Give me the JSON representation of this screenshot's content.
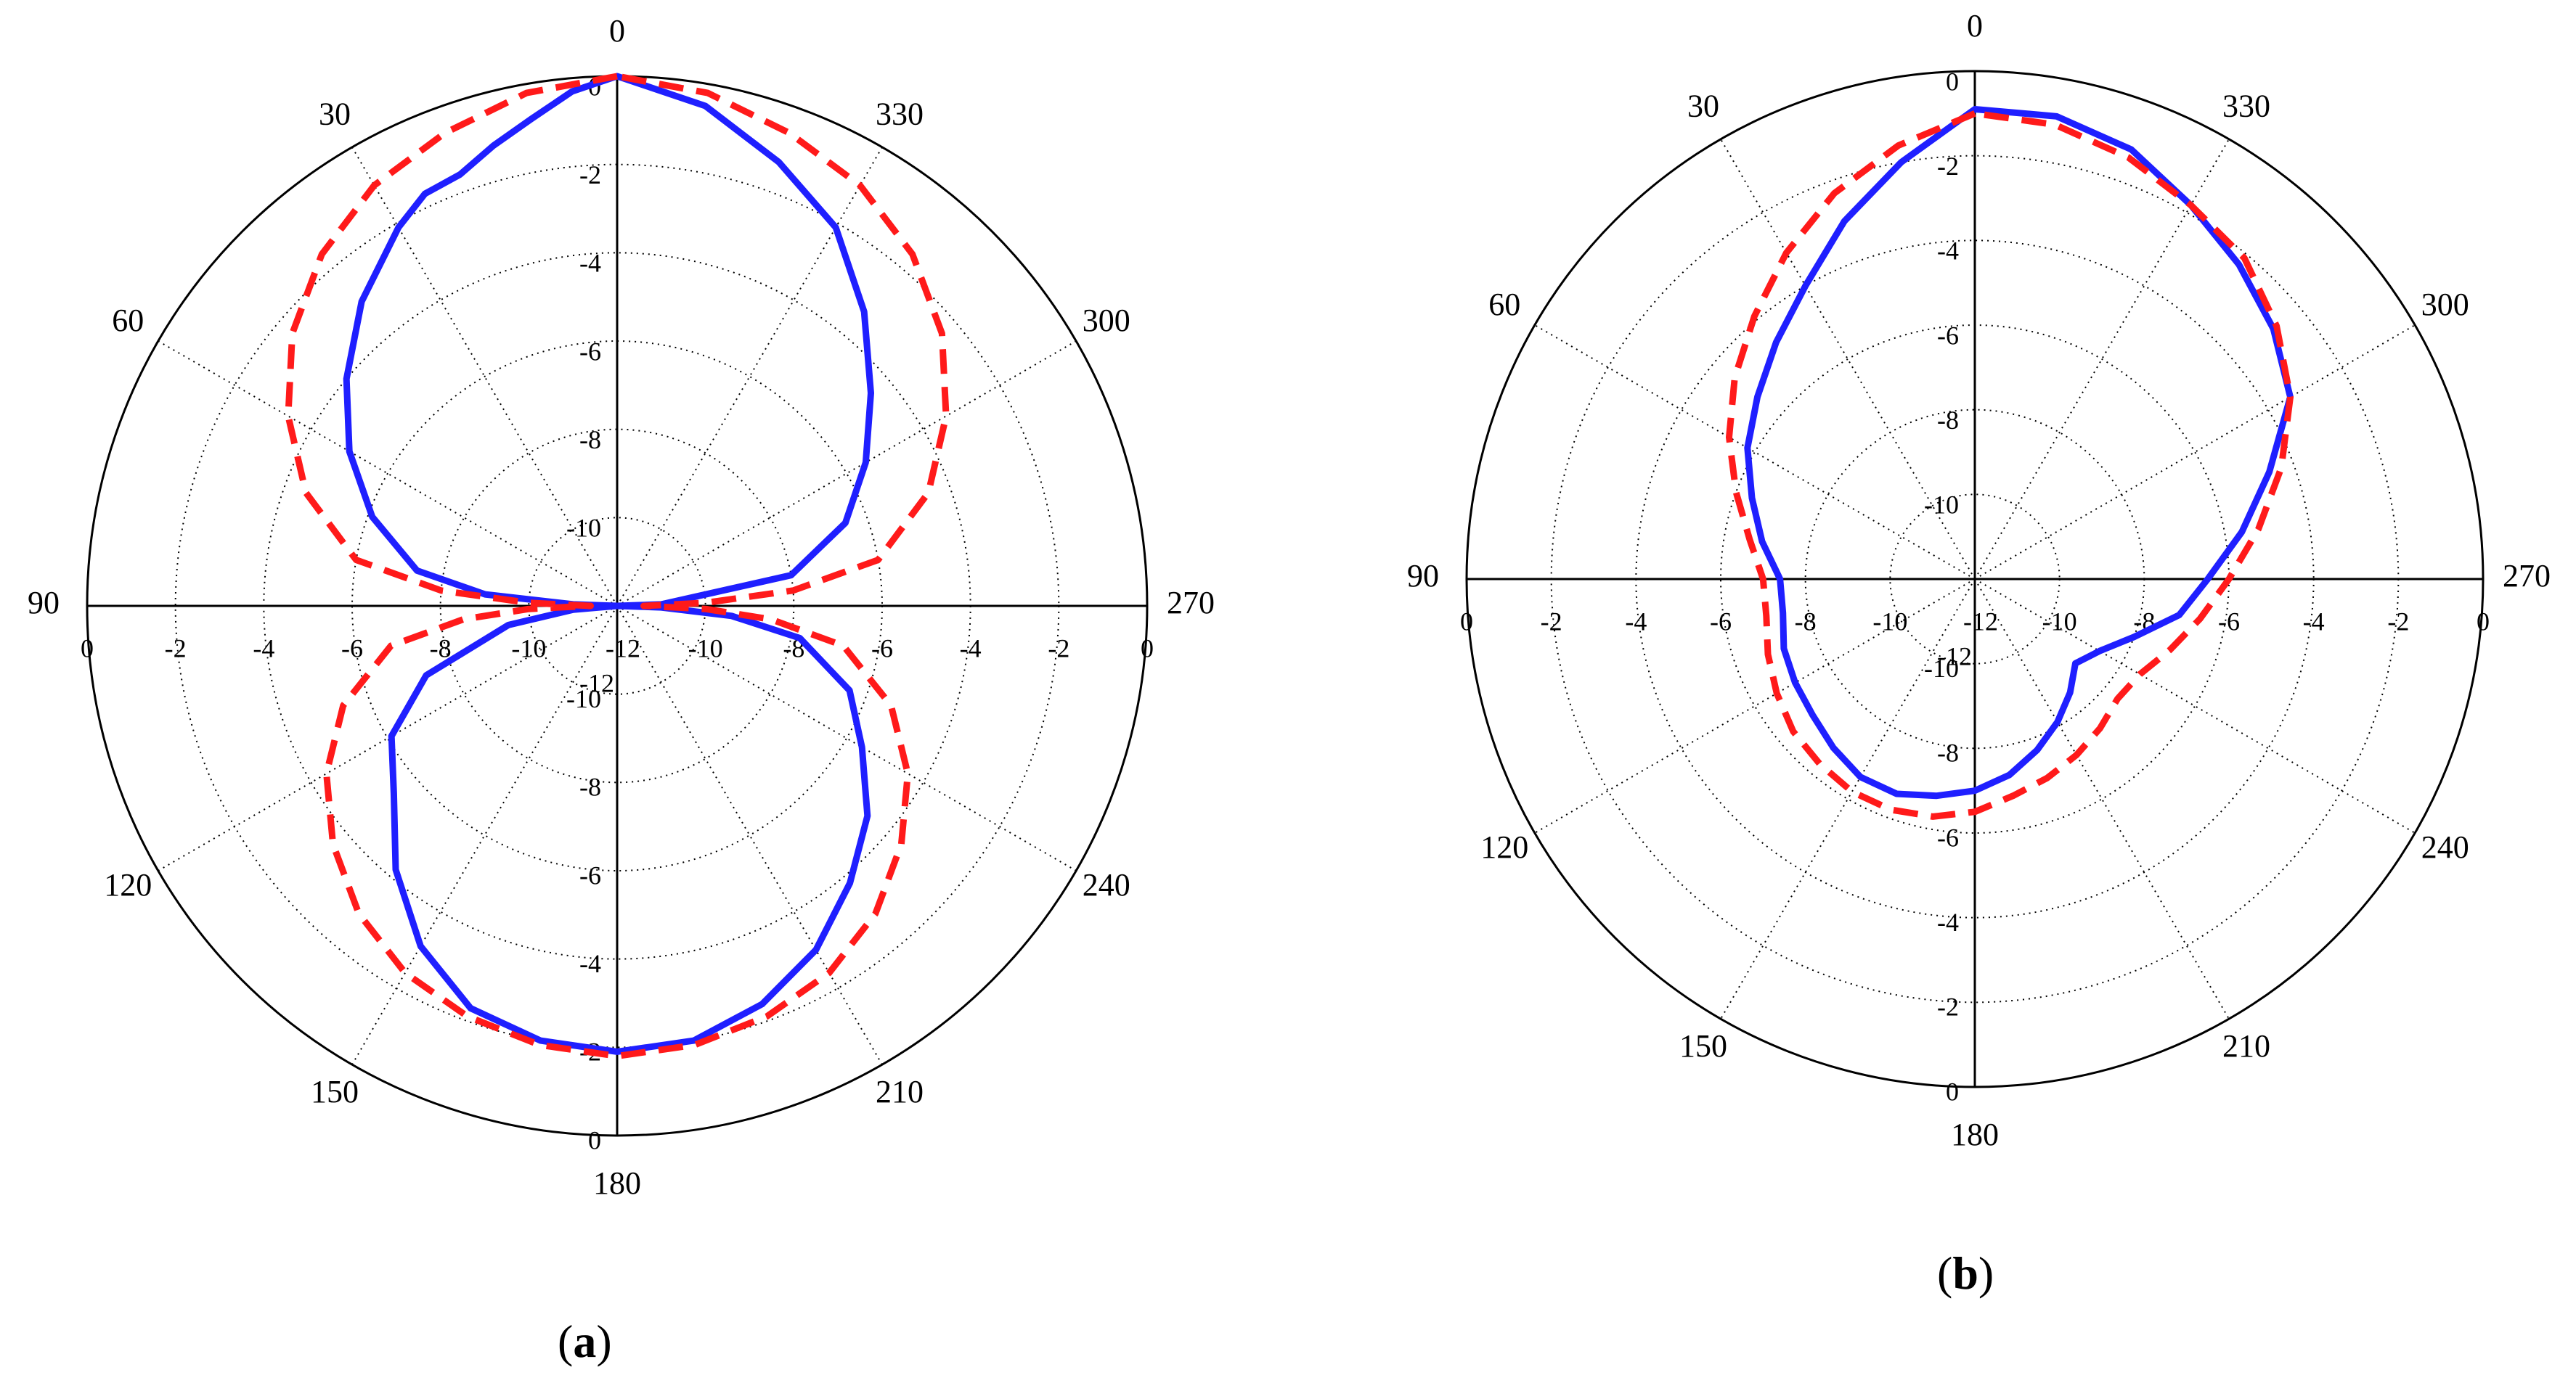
{
  "chart_data": [
    {
      "type": "line",
      "subtype": "polar",
      "panel_label": "a",
      "angle_ticks": [
        "0",
        "30",
        "60",
        "90",
        "120",
        "150",
        "180",
        "210",
        "240",
        "270",
        "300",
        "330"
      ],
      "angle_direction": "counterclockwise, 0 at top",
      "radial_range": [
        -12,
        0
      ],
      "radial_ticks": [
        "0",
        "-2",
        "-4",
        "-6",
        "-8",
        "-10",
        "-12"
      ],
      "grid": true,
      "series": [
        {
          "color": "#1f1fff",
          "style": "solid",
          "points": [
            [
              0,
              0
            ],
            [
              5,
              -0.3
            ],
            [
              10,
              -0.8
            ],
            [
              15,
              -1.2
            ],
            [
              20,
              -1.6
            ],
            [
              25,
              -1.7
            ],
            [
              30,
              -2.1
            ],
            [
              40,
              -3.0
            ],
            [
              50,
              -4.0
            ],
            [
              60,
              -5.0
            ],
            [
              70,
              -6.1
            ],
            [
              80,
              -7.4
            ],
            [
              85,
              -9.0
            ],
            [
              88,
              -11.0
            ],
            [
              90,
              -12
            ],
            [
              95,
              -11.0
            ],
            [
              100,
              -9.5
            ],
            [
              110,
              -7.4
            ],
            [
              120,
              -6.1
            ],
            [
              130,
              -5.4
            ],
            [
              140,
              -4.2
            ],
            [
              150,
              -3.1
            ],
            [
              160,
              -2.3
            ],
            [
              170,
              -2.0
            ],
            [
              180,
              -1.9
            ],
            [
              190,
              -2.0
            ],
            [
              200,
              -2.4
            ],
            [
              210,
              -3.0
            ],
            [
              220,
              -3.8
            ],
            [
              230,
              -4.6
            ],
            [
              240,
              -5.6
            ],
            [
              250,
              -6.4
            ],
            [
              260,
              -7.8
            ],
            [
              265,
              -9.4
            ],
            [
              268,
              -11.0
            ],
            [
              270,
              -12
            ],
            [
              272,
              -11.0
            ],
            [
              280,
              -8.0
            ],
            [
              290,
              -6.5
            ],
            [
              300,
              -5.5
            ],
            [
              310,
              -4.5
            ],
            [
              320,
              -3.3
            ],
            [
              330,
              -2.1
            ],
            [
              340,
              -1.3
            ],
            [
              350,
              -0.5
            ],
            [
              360,
              0
            ]
          ]
        },
        {
          "color": "#ff1a1a",
          "style": "dashed",
          "points": [
            [
              0,
              0
            ],
            [
              10,
              -0.2
            ],
            [
              20,
              -0.6
            ],
            [
              30,
              -1.0
            ],
            [
              40,
              -1.6
            ],
            [
              50,
              -2.4
            ],
            [
              60,
              -3.4
            ],
            [
              70,
              -4.5
            ],
            [
              80,
              -6.0
            ],
            [
              85,
              -8.0
            ],
            [
              88,
              -10.0
            ],
            [
              90,
              -11.4
            ],
            [
              92,
              -10.0
            ],
            [
              95,
              -8.5
            ],
            [
              100,
              -6.8
            ],
            [
              110,
              -5.4
            ],
            [
              120,
              -4.4
            ],
            [
              130,
              -3.6
            ],
            [
              140,
              -2.9
            ],
            [
              150,
              -2.4
            ],
            [
              160,
              -2.1
            ],
            [
              170,
              -1.9
            ],
            [
              180,
              -1.8
            ],
            [
              190,
              -1.9
            ],
            [
              200,
              -2.1
            ],
            [
              210,
              -2.4
            ],
            [
              220,
              -2.9
            ],
            [
              230,
              -3.6
            ],
            [
              240,
              -4.4
            ],
            [
              250,
              -5.4
            ],
            [
              260,
              -6.8
            ],
            [
              265,
              -8.5
            ],
            [
              268,
              -10.0
            ],
            [
              270,
              -11.4
            ],
            [
              272,
              -10.0
            ],
            [
              275,
              -8.0
            ],
            [
              280,
              -6.0
            ],
            [
              290,
              -4.5
            ],
            [
              300,
              -3.4
            ],
            [
              310,
              -2.4
            ],
            [
              320,
              -1.6
            ],
            [
              330,
              -1.0
            ],
            [
              340,
              -0.6
            ],
            [
              350,
              -0.2
            ],
            [
              360,
              0
            ]
          ]
        }
      ]
    },
    {
      "type": "line",
      "subtype": "polar",
      "panel_label": "b",
      "angle_ticks": [
        "0",
        "30",
        "60",
        "90",
        "120",
        "150",
        "180",
        "210",
        "240",
        "270",
        "300",
        "330"
      ],
      "angle_direction": "counterclockwise, 0 at top",
      "radial_range": [
        -12,
        0
      ],
      "radial_ticks": [
        "0",
        "-2",
        "-4",
        "-6",
        "-8",
        "-10",
        "-12"
      ],
      "grid": true,
      "series": [
        {
          "color": "#1f1fff",
          "style": "solid",
          "points": [
            [
              0,
              -0.9
            ],
            [
              10,
              -2.0
            ],
            [
              20,
              -3.0
            ],
            [
              30,
              -4.0
            ],
            [
              40,
              -4.7
            ],
            [
              50,
              -5.3
            ],
            [
              60,
              -5.8
            ],
            [
              70,
              -6.4
            ],
            [
              80,
              -6.9
            ],
            [
              90,
              -7.4
            ],
            [
              100,
              -7.4
            ],
            [
              110,
              -7.2
            ],
            [
              120,
              -7.1
            ],
            [
              130,
              -7.0
            ],
            [
              140,
              -6.8
            ],
            [
              150,
              -6.6
            ],
            [
              160,
              -6.6
            ],
            [
              170,
              -6.8
            ],
            [
              180,
              -7.0
            ],
            [
              190,
              -7.3
            ],
            [
              200,
              -7.7
            ],
            [
              210,
              -8.1
            ],
            [
              220,
              -8.5
            ],
            [
              230,
              -8.9
            ],
            [
              240,
              -8.6
            ],
            [
              250,
              -8.0
            ],
            [
              260,
              -7.1
            ],
            [
              270,
              -6.5
            ],
            [
              280,
              -5.6
            ],
            [
              290,
              -4.6
            ],
            [
              300,
              -3.4
            ],
            [
              310,
              -2.8
            ],
            [
              320,
              -2.3
            ],
            [
              330,
              -1.8
            ],
            [
              340,
              -1.2
            ],
            [
              350,
              -0.9
            ],
            [
              360,
              -0.9
            ]
          ]
        },
        {
          "color": "#ff1a1a",
          "style": "dashed",
          "points": [
            [
              0,
              -1.0
            ],
            [
              10,
              -1.6
            ],
            [
              20,
              -2.3
            ],
            [
              30,
              -3.1
            ],
            [
              40,
              -3.9
            ],
            [
              50,
              -4.6
            ],
            [
              60,
              -5.3
            ],
            [
              70,
              -6.0
            ],
            [
              80,
              -6.6
            ],
            [
              90,
              -7.0
            ],
            [
              100,
              -7.0
            ],
            [
              110,
              -6.8
            ],
            [
              120,
              -6.6
            ],
            [
              130,
              -6.4
            ],
            [
              140,
              -6.3
            ],
            [
              150,
              -6.2
            ],
            [
              160,
              -6.2
            ],
            [
              170,
              -6.3
            ],
            [
              180,
              -6.5
            ],
            [
              190,
              -6.8
            ],
            [
              200,
              -7.0
            ],
            [
              210,
              -7.2
            ],
            [
              220,
              -7.4
            ],
            [
              230,
              -7.6
            ],
            [
              240,
              -7.5
            ],
            [
              250,
              -7.1
            ],
            [
              260,
              -6.6
            ],
            [
              270,
              -6.0
            ],
            [
              280,
              -5.2
            ],
            [
              290,
              -4.3
            ],
            [
              300,
              -3.4
            ],
            [
              310,
              -2.7
            ],
            [
              320,
              -2.1
            ],
            [
              330,
              -1.8
            ],
            [
              340,
              -1.4
            ],
            [
              350,
              -1.1
            ],
            [
              360,
              -1.0
            ]
          ]
        }
      ]
    }
  ]
}
